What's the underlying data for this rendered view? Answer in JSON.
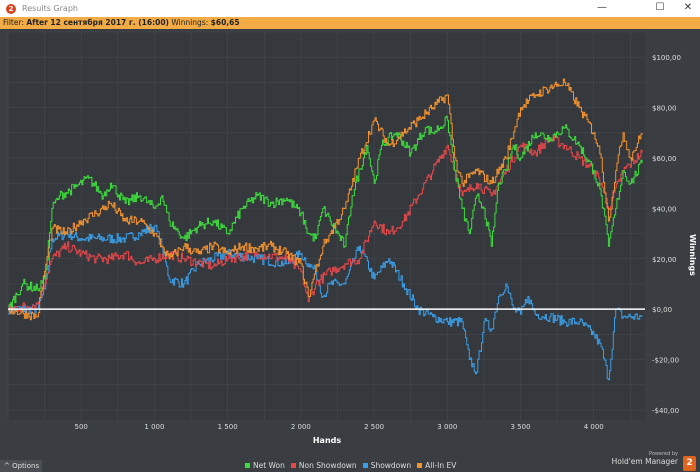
{
  "window": {
    "title": "Results Graph",
    "minimize": "—",
    "maximize": "☐",
    "close": "✕"
  },
  "filter": {
    "label": "Filter:",
    "value": "After 12 сентября 2017 г. (16:00)",
    "winnings_label": "Winnings:",
    "winnings": "$60,65"
  },
  "footer": {
    "options": "^  Options",
    "powered_by": "Powered by",
    "brand": "Hold'em Manager",
    "brand_logo": "2"
  },
  "colors": {
    "net_won": "#3ddc3d",
    "non_showdown": "#e8474a",
    "showdown": "#3a9ee8",
    "all_in_ev": "#f5932e"
  },
  "chart_data": {
    "type": "line",
    "xlabel": "Hands",
    "ylabel": "Winnings",
    "xlim": [
      0,
      4350
    ],
    "ylim": [
      -44,
      110
    ],
    "x_ticks": [
      500,
      1000,
      1500,
      2000,
      2500,
      3000,
      3500,
      4000
    ],
    "x_tick_labels": [
      "500",
      "1 000",
      "1 500",
      "2 000",
      "2 500",
      "3 000",
      "3 500",
      "4 000"
    ],
    "y_ticks": [
      100,
      80,
      60,
      40,
      20,
      0,
      -20,
      -40
    ],
    "y_tick_labels": [
      "$100,00",
      "$80,00",
      "$60,00",
      "$40,00",
      "$20,00",
      "$0,00",
      "-$20,00",
      "-$40,00"
    ],
    "grid": true,
    "legend": "bottom",
    "series": [
      {
        "name": "Net Won",
        "color": "#3ddc3d",
        "points": [
          [
            0,
            0
          ],
          [
            100,
            10
          ],
          [
            200,
            8
          ],
          [
            250,
            12
          ],
          [
            300,
            40
          ],
          [
            350,
            45
          ],
          [
            450,
            48
          ],
          [
            550,
            52
          ],
          [
            650,
            45
          ],
          [
            700,
            50
          ],
          [
            800,
            42
          ],
          [
            900,
            45
          ],
          [
            1000,
            40
          ],
          [
            1050,
            45
          ],
          [
            1100,
            35
          ],
          [
            1200,
            28
          ],
          [
            1300,
            33
          ],
          [
            1400,
            35
          ],
          [
            1500,
            30
          ],
          [
            1600,
            40
          ],
          [
            1700,
            45
          ],
          [
            1800,
            42
          ],
          [
            1900,
            44
          ],
          [
            2000,
            38
          ],
          [
            2050,
            30
          ],
          [
            2100,
            28
          ],
          [
            2150,
            40
          ],
          [
            2200,
            35
          ],
          [
            2300,
            25
          ],
          [
            2350,
            45
          ],
          [
            2450,
            65
          ],
          [
            2500,
            50
          ],
          [
            2550,
            65
          ],
          [
            2650,
            70
          ],
          [
            2750,
            62
          ],
          [
            2850,
            72
          ],
          [
            2900,
            70
          ],
          [
            3000,
            75
          ],
          [
            3050,
            55
          ],
          [
            3100,
            40
          ],
          [
            3150,
            30
          ],
          [
            3200,
            45
          ],
          [
            3250,
            40
          ],
          [
            3300,
            25
          ],
          [
            3350,
            50
          ],
          [
            3400,
            55
          ],
          [
            3450,
            65
          ],
          [
            3500,
            60
          ],
          [
            3600,
            70
          ],
          [
            3700,
            68
          ],
          [
            3800,
            72
          ],
          [
            3900,
            65
          ],
          [
            4000,
            55
          ],
          [
            4050,
            45
          ],
          [
            4100,
            25
          ],
          [
            4150,
            40
          ],
          [
            4200,
            55
          ],
          [
            4250,
            50
          ],
          [
            4330,
            58
          ]
        ]
      },
      {
        "name": "Non Showdown",
        "color": "#e8474a",
        "points": [
          [
            0,
            0
          ],
          [
            200,
            2
          ],
          [
            300,
            20
          ],
          [
            400,
            25
          ],
          [
            500,
            22
          ],
          [
            600,
            20
          ],
          [
            700,
            20
          ],
          [
            800,
            22
          ],
          [
            900,
            18
          ],
          [
            1000,
            20
          ],
          [
            1100,
            22
          ],
          [
            1200,
            20
          ],
          [
            1400,
            17
          ],
          [
            1500,
            20
          ],
          [
            1700,
            22
          ],
          [
            1900,
            20
          ],
          [
            2000,
            15
          ],
          [
            2050,
            3
          ],
          [
            2100,
            10
          ],
          [
            2200,
            15
          ],
          [
            2300,
            18
          ],
          [
            2400,
            20
          ],
          [
            2500,
            35
          ],
          [
            2600,
            30
          ],
          [
            2700,
            35
          ],
          [
            2800,
            45
          ],
          [
            2900,
            55
          ],
          [
            3000,
            65
          ],
          [
            3050,
            55
          ],
          [
            3100,
            45
          ],
          [
            3200,
            50
          ],
          [
            3300,
            45
          ],
          [
            3400,
            55
          ],
          [
            3500,
            65
          ],
          [
            3600,
            62
          ],
          [
            3700,
            68
          ],
          [
            3800,
            65
          ],
          [
            3900,
            60
          ],
          [
            4000,
            55
          ],
          [
            4050,
            50
          ],
          [
            4100,
            40
          ],
          [
            4200,
            55
          ],
          [
            4330,
            62
          ]
        ]
      },
      {
        "name": "Showdown",
        "color": "#3a9ee8",
        "points": [
          [
            0,
            0
          ],
          [
            200,
            0
          ],
          [
            250,
            8
          ],
          [
            300,
            28
          ],
          [
            400,
            30
          ],
          [
            500,
            28
          ],
          [
            800,
            28
          ],
          [
            900,
            30
          ],
          [
            1000,
            33
          ],
          [
            1050,
            25
          ],
          [
            1100,
            12
          ],
          [
            1200,
            10
          ],
          [
            1300,
            18
          ],
          [
            1500,
            22
          ],
          [
            1700,
            20
          ],
          [
            1900,
            18
          ],
          [
            2000,
            22
          ],
          [
            2050,
            18
          ],
          [
            2100,
            15
          ],
          [
            2150,
            5
          ],
          [
            2200,
            10
          ],
          [
            2300,
            10
          ],
          [
            2400,
            25
          ],
          [
            2500,
            12
          ],
          [
            2600,
            20
          ],
          [
            2700,
            10
          ],
          [
            2800,
            0
          ],
          [
            2900,
            -3
          ],
          [
            3000,
            -5
          ],
          [
            3100,
            -5
          ],
          [
            3150,
            -20
          ],
          [
            3200,
            -25
          ],
          [
            3250,
            -5
          ],
          [
            3300,
            -8
          ],
          [
            3350,
            5
          ],
          [
            3400,
            10
          ],
          [
            3450,
            0
          ],
          [
            3500,
            -2
          ],
          [
            3550,
            5
          ],
          [
            3600,
            -2
          ],
          [
            3700,
            -3
          ],
          [
            3800,
            -5
          ],
          [
            3900,
            -5
          ],
          [
            4000,
            -10
          ],
          [
            4050,
            -15
          ],
          [
            4100,
            -28
          ],
          [
            4150,
            0
          ],
          [
            4200,
            -3
          ],
          [
            4330,
            -3
          ]
        ]
      },
      {
        "name": "All-In EV",
        "color": "#f5932e",
        "points": [
          [
            0,
            0
          ],
          [
            200,
            -3
          ],
          [
            250,
            15
          ],
          [
            300,
            32
          ],
          [
            400,
            30
          ],
          [
            500,
            35
          ],
          [
            600,
            38
          ],
          [
            700,
            42
          ],
          [
            800,
            35
          ],
          [
            900,
            35
          ],
          [
            1000,
            30
          ],
          [
            1050,
            25
          ],
          [
            1100,
            20
          ],
          [
            1200,
            25
          ],
          [
            1300,
            22
          ],
          [
            1400,
            25
          ],
          [
            1500,
            22
          ],
          [
            1600,
            25
          ],
          [
            1700,
            24
          ],
          [
            1800,
            25
          ],
          [
            1900,
            22
          ],
          [
            2000,
            18
          ],
          [
            2050,
            5
          ],
          [
            2100,
            15
          ],
          [
            2150,
            25
          ],
          [
            2200,
            30
          ],
          [
            2300,
            40
          ],
          [
            2400,
            60
          ],
          [
            2500,
            75
          ],
          [
            2600,
            65
          ],
          [
            2700,
            70
          ],
          [
            2800,
            75
          ],
          [
            2900,
            80
          ],
          [
            3000,
            85
          ],
          [
            3050,
            60
          ],
          [
            3100,
            50
          ],
          [
            3200,
            55
          ],
          [
            3300,
            50
          ],
          [
            3400,
            60
          ],
          [
            3500,
            80
          ],
          [
            3600,
            85
          ],
          [
            3700,
            88
          ],
          [
            3800,
            90
          ],
          [
            3900,
            80
          ],
          [
            4000,
            70
          ],
          [
            4050,
            60
          ],
          [
            4100,
            35
          ],
          [
            4150,
            55
          ],
          [
            4200,
            70
          ],
          [
            4250,
            60
          ],
          [
            4330,
            70
          ]
        ]
      }
    ]
  }
}
